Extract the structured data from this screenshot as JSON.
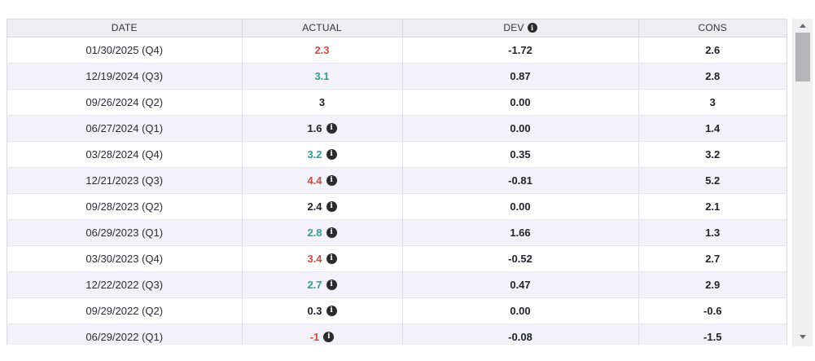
{
  "table": {
    "columns": [
      {
        "key": "date",
        "label": "DATE"
      },
      {
        "key": "actual",
        "label": "ACTUAL"
      },
      {
        "key": "dev",
        "label": "DEV",
        "info_icon": true
      },
      {
        "key": "cons",
        "label": "CONS"
      }
    ],
    "rows": [
      {
        "date": "01/30/2025 (Q4)",
        "actual": "2.3",
        "actual_color": "red",
        "actual_info": false,
        "dev": "-1.72",
        "cons": "2.6"
      },
      {
        "date": "12/19/2024 (Q3)",
        "actual": "3.1",
        "actual_color": "teal",
        "actual_info": false,
        "dev": "0.87",
        "cons": "2.8"
      },
      {
        "date": "09/26/2024 (Q2)",
        "actual": "3",
        "actual_color": "black",
        "actual_info": false,
        "dev": "0.00",
        "cons": "3"
      },
      {
        "date": "06/27/2024 (Q1)",
        "actual": "1.6",
        "actual_color": "black",
        "actual_info": true,
        "dev": "0.00",
        "cons": "1.4"
      },
      {
        "date": "03/28/2024 (Q4)",
        "actual": "3.2",
        "actual_color": "teal",
        "actual_info": true,
        "dev": "0.35",
        "cons": "3.2"
      },
      {
        "date": "12/21/2023 (Q3)",
        "actual": "4.4",
        "actual_color": "red",
        "actual_info": true,
        "dev": "-0.81",
        "cons": "5.2"
      },
      {
        "date": "09/28/2023 (Q2)",
        "actual": "2.4",
        "actual_color": "black",
        "actual_info": true,
        "dev": "0.00",
        "cons": "2.1"
      },
      {
        "date": "06/29/2023 (Q1)",
        "actual": "2.8",
        "actual_color": "teal",
        "actual_info": true,
        "dev": "1.66",
        "cons": "1.3"
      },
      {
        "date": "03/30/2023 (Q4)",
        "actual": "3.4",
        "actual_color": "red",
        "actual_info": true,
        "dev": "-0.52",
        "cons": "2.7"
      },
      {
        "date": "12/22/2022 (Q3)",
        "actual": "2.7",
        "actual_color": "teal",
        "actual_info": true,
        "dev": "0.47",
        "cons": "2.9"
      },
      {
        "date": "09/29/2022 (Q2)",
        "actual": "0.3",
        "actual_color": "black",
        "actual_info": true,
        "dev": "0.00",
        "cons": "-0.6"
      },
      {
        "date": "06/29/2022 (Q1)",
        "actual": "-1",
        "actual_color": "red",
        "actual_info": true,
        "dev": "-0.08",
        "cons": "-1.5"
      }
    ]
  },
  "icons": {
    "info_glyph": "i"
  },
  "colors": {
    "actual_negative": "#cb4a42",
    "actual_positive": "#2f9e8f",
    "text": "#212529",
    "header_bg": "#ededf2",
    "row_alt_bg": "#f2f2f8",
    "border": "#d9d9df",
    "scrollbar_thumb": "#b5b5b7",
    "scrollbar_track": "#f0f0f1"
  }
}
